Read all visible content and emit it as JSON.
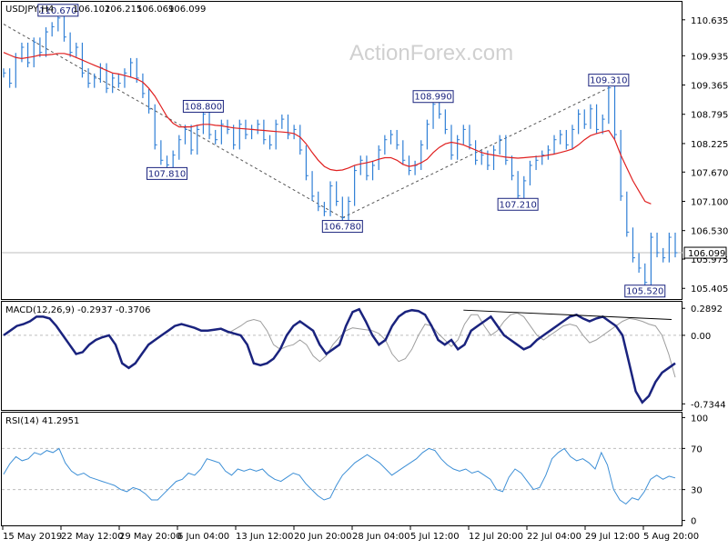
{
  "watermark": "ActionForex.com",
  "colors": {
    "price": "#2f7fd6",
    "ma": "#e02020",
    "macd": "#1a237e",
    "signal": "#9e9e9e",
    "rsi": "#3d8fd6",
    "label_border": "#1a237e",
    "label_text": "#1a237e",
    "grid": "#bdbdbd",
    "trend": "#555555"
  },
  "chart_data": [
    {
      "type": "line",
      "panel": "price",
      "title": "USDJPY,H4",
      "ohlc": {
        "open": "106.102",
        "high": "106.215",
        "low": "106.069",
        "close": "106.099"
      },
      "current_price_label": "106.099",
      "current_price": 106.099,
      "ylim": [
        105.25,
        110.95
      ],
      "y_ticks": [
        "110.635",
        "109.935",
        "109.365",
        "108.795",
        "108.225",
        "107.670",
        "107.100",
        "106.530",
        "105.975",
        "105.405"
      ],
      "y_tick_values": [
        110.635,
        109.935,
        109.365,
        108.795,
        108.225,
        107.67,
        107.1,
        106.53,
        105.975,
        105.405
      ],
      "x_ticks": [
        "15 May 2019",
        "22 May 12:00",
        "29 May 20:00",
        "6 Jun 04:00",
        "13 Jun 12:00",
        "20 Jun 20:00",
        "28 Jun 04:00",
        "5 Jul 12:00",
        "12 Jul 20:00",
        "22 Jul 04:00",
        "29 Jul 12:00",
        "5 Aug 20:00"
      ],
      "series": [
        {
          "values": [
            109.6,
            109.4,
            109.9,
            110.1,
            109.8,
            110.2,
            110.0,
            110.4,
            110.5,
            110.67,
            110.3,
            110.0,
            110.1,
            109.6,
            109.4,
            109.5,
            109.7,
            109.3,
            109.5,
            109.4,
            109.6,
            109.8,
            109.5,
            109.2,
            108.9,
            108.2,
            107.9,
            107.81,
            108.0,
            108.3,
            108.5,
            108.1,
            108.5,
            108.8,
            108.4,
            108.3,
            108.6,
            108.5,
            108.2,
            108.6,
            108.4,
            108.5,
            108.6,
            108.3,
            108.2,
            108.6,
            108.7,
            108.4,
            108.5,
            108.1,
            107.6,
            107.2,
            107.0,
            106.9,
            107.4,
            107.1,
            106.78,
            107.1,
            107.7,
            107.9,
            107.6,
            107.8,
            108.1,
            108.3,
            108.4,
            108.2,
            107.9,
            107.7,
            107.8,
            108.2,
            108.6,
            108.99,
            108.8,
            108.5,
            108.0,
            108.3,
            108.5,
            108.2,
            107.9,
            108.0,
            107.8,
            108.1,
            108.3,
            107.9,
            107.6,
            107.21,
            107.5,
            107.8,
            107.9,
            108.0,
            108.1,
            108.3,
            108.4,
            108.2,
            108.5,
            108.8,
            108.6,
            108.9,
            108.5,
            108.7,
            109.31,
            108.4,
            107.2,
            106.5,
            106.0,
            105.8,
            105.52,
            106.4,
            106.1,
            106.0,
            106.4,
            106.099
          ]
        },
        {
          "values": [
            110.0,
            109.95,
            109.9,
            109.88,
            109.9,
            109.92,
            109.95,
            109.95,
            109.96,
            109.98,
            109.98,
            109.95,
            109.9,
            109.85,
            109.8,
            109.75,
            109.7,
            109.65,
            109.6,
            109.58,
            109.55,
            109.52,
            109.48,
            109.42,
            109.3,
            109.15,
            108.95,
            108.75,
            108.62,
            108.55,
            108.55,
            108.55,
            108.58,
            108.6,
            108.6,
            108.58,
            108.57,
            108.55,
            108.53,
            108.52,
            108.51,
            108.5,
            108.49,
            108.48,
            108.47,
            108.46,
            108.45,
            108.44,
            108.42,
            108.35,
            108.22,
            108.05,
            107.9,
            107.78,
            107.72,
            107.7,
            107.71,
            107.75,
            107.8,
            107.83,
            107.85,
            107.88,
            107.92,
            107.95,
            107.95,
            107.9,
            107.82,
            107.78,
            107.8,
            107.85,
            107.92,
            108.05,
            108.15,
            108.22,
            108.25,
            108.23,
            108.2,
            108.15,
            108.1,
            108.05,
            108.02,
            108.0,
            107.98,
            107.96,
            107.95,
            107.94,
            107.95,
            107.96,
            107.97,
            107.98,
            108.0,
            108.02,
            108.05,
            108.08,
            108.12,
            108.2,
            108.3,
            108.38,
            108.42,
            108.45,
            108.48,
            108.3,
            108.0,
            107.75,
            107.5,
            107.3,
            107.1,
            107.05
          ]
        }
      ],
      "annotations": [
        {
          "text": "110.670",
          "x": 9,
          "y": 110.67
        },
        {
          "text": "108.800",
          "x": 33,
          "y": 108.8
        },
        {
          "text": "107.810",
          "x": 27,
          "y": 107.81
        },
        {
          "text": "106.780",
          "x": 56,
          "y": 106.78
        },
        {
          "text": "108.990",
          "x": 71,
          "y": 108.99
        },
        {
          "text": "107.210",
          "x": 85,
          "y": 107.21
        },
        {
          "text": "109.310",
          "x": 100,
          "y": 109.31
        },
        {
          "text": "105.520",
          "x": 106,
          "y": 105.52
        }
      ],
      "trendlines": [
        {
          "x": [
            0,
            56
          ],
          "y": [
            110.55,
            106.78
          ]
        },
        {
          "x": [
            56,
            100
          ],
          "y": [
            106.78,
            109.31
          ]
        }
      ]
    },
    {
      "type": "line",
      "panel": "macd",
      "title": "MACD(12,26,9) -0.2937 -0.3706",
      "ylim": [
        -0.78,
        0.34
      ],
      "y_ticks": [
        "0.2892",
        "0.00",
        "-0.7344"
      ],
      "y_tick_values": [
        0.2892,
        0.0,
        -0.7344
      ],
      "series": [
        {
          "values": [
            0.0,
            0.05,
            0.1,
            0.12,
            0.15,
            0.2,
            0.2,
            0.18,
            0.1,
            0.0,
            -0.1,
            -0.2,
            -0.18,
            -0.1,
            -0.05,
            -0.02,
            0.0,
            -0.1,
            -0.3,
            -0.35,
            -0.3,
            -0.2,
            -0.1,
            -0.05,
            0.0,
            0.05,
            0.1,
            0.12,
            0.1,
            0.08,
            0.05,
            0.05,
            0.06,
            0.07,
            0.04,
            0.02,
            0.0,
            -0.1,
            -0.3,
            -0.32,
            -0.3,
            -0.25,
            -0.15,
            0.0,
            0.1,
            0.15,
            0.1,
            0.05,
            -0.1,
            -0.2,
            -0.15,
            -0.1,
            0.1,
            0.25,
            0.28,
            0.15,
            0.0,
            -0.1,
            -0.05,
            0.1,
            0.2,
            0.25,
            0.27,
            0.26,
            0.22,
            0.1,
            -0.05,
            -0.1,
            -0.05,
            -0.15,
            -0.1,
            0.05,
            0.1,
            0.15,
            0.2,
            0.1,
            0.0,
            -0.05,
            -0.1,
            -0.15,
            -0.12,
            -0.05,
            0.0,
            0.05,
            0.1,
            0.15,
            0.2,
            0.22,
            0.18,
            0.15,
            0.18,
            0.2,
            0.15,
            0.1,
            0.0,
            -0.3,
            -0.6,
            -0.72,
            -0.65,
            -0.5,
            -0.4,
            -0.35,
            -0.3
          ],
          "x_start": 0
        },
        {
          "values": [
            0.02,
            0.06,
            0.1,
            0.15,
            0.17,
            0.15,
            0.05,
            -0.1,
            -0.15,
            -0.12,
            -0.1,
            -0.05,
            -0.1,
            -0.22,
            -0.28,
            -0.22,
            -0.1,
            -0.02,
            0.05,
            0.08,
            0.07,
            0.06,
            0.05,
            0.02,
            -0.05,
            -0.2,
            -0.28,
            -0.25,
            -0.15,
            0.0,
            0.12,
            0.1,
            0.02,
            -0.05,
            -0.12,
            -0.05,
            0.12,
            0.22,
            0.22,
            0.1,
            0.0,
            0.05,
            0.15,
            0.22,
            0.24,
            0.2,
            0.1,
            0.0,
            -0.05,
            0.0,
            0.05,
            0.1,
            0.12,
            0.1,
            0.0,
            -0.08,
            -0.05,
            0.0,
            0.05,
            0.1,
            0.15,
            0.18,
            0.17,
            0.15,
            0.12,
            0.1,
            0.0,
            -0.2,
            -0.45,
            -0.6,
            -0.6,
            -0.5,
            -0.4,
            -0.37
          ],
          "x_start": 34
        }
      ],
      "trendlines": [
        {
          "x": [
            76,
            119
          ],
          "y": [
            0.27,
            0.17
          ]
        }
      ]
    },
    {
      "type": "line",
      "panel": "rsi",
      "title": "RSI(14) 41.2951",
      "ylim": [
        0,
        100
      ],
      "y_ticks": [
        "100",
        "70",
        "30",
        "0"
      ],
      "y_tick_values": [
        100,
        70,
        30,
        0
      ],
      "series": [
        {
          "values": [
            45,
            55,
            62,
            58,
            60,
            66,
            64,
            68,
            66,
            70,
            56,
            48,
            44,
            46,
            42,
            40,
            38,
            36,
            34,
            30,
            28,
            32,
            30,
            26,
            20,
            20,
            26,
            32,
            38,
            40,
            46,
            44,
            50,
            60,
            58,
            56,
            48,
            44,
            50,
            48,
            50,
            48,
            50,
            44,
            40,
            38,
            42,
            46,
            44,
            36,
            30,
            24,
            20,
            22,
            34,
            44,
            50,
            56,
            60,
            64,
            60,
            56,
            50,
            44,
            48,
            52,
            56,
            60,
            66,
            70,
            68,
            60,
            54,
            50,
            48,
            50,
            46,
            48,
            44,
            40,
            30,
            28,
            42,
            50,
            46,
            38,
            30,
            32,
            44,
            60,
            66,
            70,
            62,
            58,
            60,
            56,
            50,
            66,
            54,
            30,
            20,
            16,
            22,
            20,
            28,
            40,
            44,
            40,
            43,
            41.3
          ]
        }
      ]
    }
  ]
}
